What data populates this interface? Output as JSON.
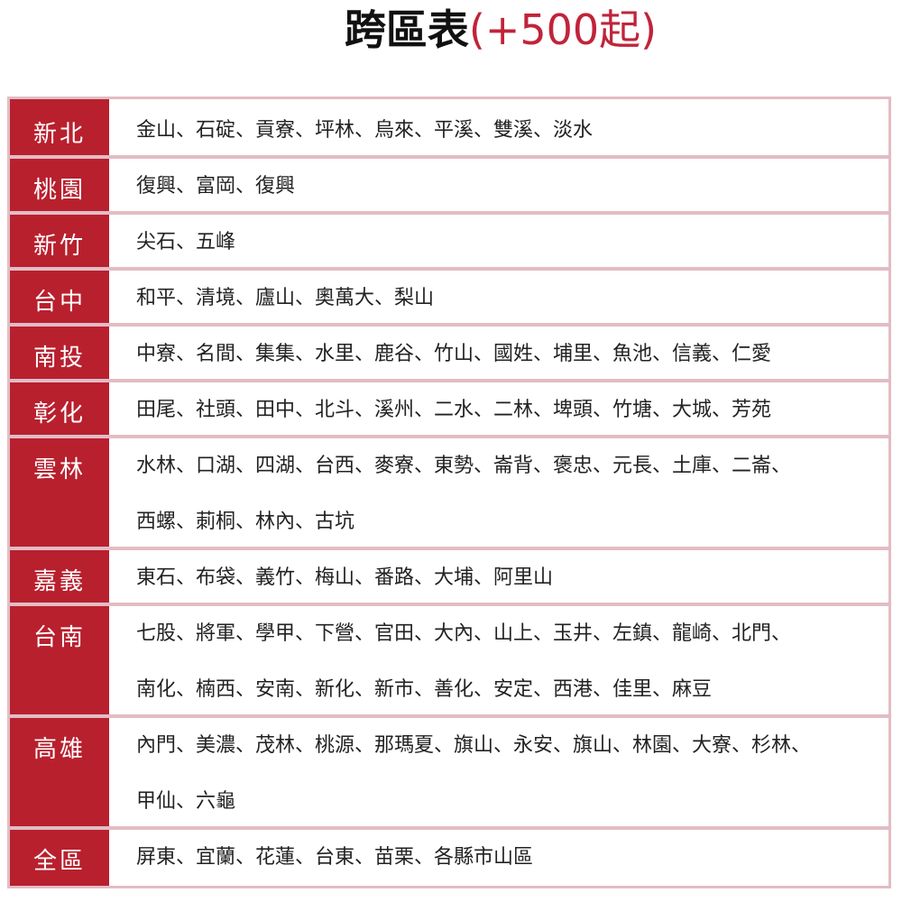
{
  "title": {
    "main": "跨區表",
    "sub": "(+500起)"
  },
  "colors": {
    "label_bg": "#b8202e",
    "border": "#e3bcc4",
    "accent": "#c0243a"
  },
  "rows": [
    {
      "region": "新北",
      "lines": [
        "金山、石碇、貢寮、坪林、烏來、平溪、雙溪、淡水"
      ]
    },
    {
      "region": "桃園",
      "lines": [
        "復興、富岡、復興"
      ]
    },
    {
      "region": "新竹",
      "lines": [
        "尖石、五峰"
      ]
    },
    {
      "region": "台中",
      "lines": [
        "和平、清境、廬山、奧萬大、梨山"
      ]
    },
    {
      "region": "南投",
      "lines": [
        "中寮、名間、集集、水里、鹿谷、竹山、國姓、埔里、魚池、信義、仁愛"
      ]
    },
    {
      "region": "彰化",
      "lines": [
        "田尾、社頭、田中、北斗、溪州、二水、二林、埤頭、竹塘、大城、芳苑"
      ]
    },
    {
      "region": "雲林",
      "lines": [
        "水林、口湖、四湖、台西、麥寮、東勢、崙背、褒忠、元長、土庫、二崙、",
        "西螺、莿桐、林內、古坑"
      ]
    },
    {
      "region": "嘉義",
      "lines": [
        "東石、布袋、義竹、梅山、番路、大埔、阿里山"
      ]
    },
    {
      "region": "台南",
      "lines": [
        "七股、將軍、學甲、下營、官田、大內、山上、玉井、左鎮、龍崎、北門、",
        "南化、楠西、安南、新化、新市、善化、安定、西港、佳里、麻豆"
      ]
    },
    {
      "region": "高雄",
      "lines": [
        "內門、美濃、茂林、桃源、那瑪夏、旗山、永安、旗山、林園、大寮、杉林、",
        "甲仙、六龜"
      ]
    },
    {
      "region": "全區",
      "lines": [
        "屏東、宜蘭、花蓮、台東、苗栗、各縣市山區"
      ]
    }
  ]
}
